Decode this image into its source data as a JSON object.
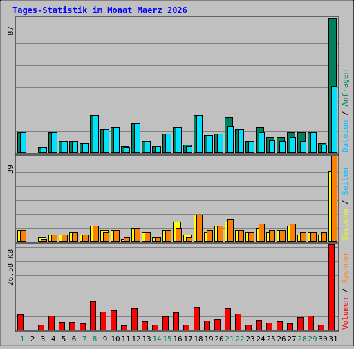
{
  "title": "Tages-Statistik im Monat Maerz 2026",
  "colors": {
    "background": "#c0c0c0",
    "title": "#0000ff",
    "hits": "#00805c",
    "files": "#00e0ff",
    "pages": "#00c0ff",
    "visits": "#ffff00",
    "sites": "#ff8000",
    "kbytes": "#ff0000",
    "weekend_label": "#00805c",
    "weekday_label": "#000000"
  },
  "chart_data": [
    {
      "type": "bar",
      "panel": "top",
      "scale_max_label": "87",
      "ylim": [
        0,
        87
      ],
      "categories": [
        "1",
        "2",
        "3",
        "4",
        "5",
        "6",
        "7",
        "8",
        "9",
        "10",
        "11",
        "12",
        "13",
        "14",
        "15",
        "16",
        "17",
        "18",
        "19",
        "20",
        "21",
        "22",
        "23",
        "24",
        "25",
        "26",
        "27",
        "28",
        "29",
        "30",
        "31"
      ],
      "weekend_days": [
        "1",
        "7",
        "8",
        "14",
        "15",
        "21",
        "22",
        "28",
        "29"
      ],
      "series": [
        {
          "name": "Anfragen",
          "values": [
            13,
            0,
            3,
            13,
            7,
            7,
            6,
            24,
            15,
            16,
            4,
            19,
            7,
            4,
            12,
            16,
            5,
            24,
            11,
            12,
            23,
            15,
            7,
            16,
            10,
            10,
            13,
            13,
            13,
            6,
            87
          ]
        },
        {
          "name": "Dateien",
          "values": [
            13,
            0,
            3,
            13,
            7,
            7,
            6,
            24,
            15,
            16,
            3,
            19,
            7,
            4,
            12,
            16,
            4,
            24,
            11,
            12,
            17,
            15,
            7,
            13,
            8,
            7,
            10,
            7,
            13,
            5,
            43
          ]
        }
      ],
      "legend_labels": [
        "Dateien",
        "Anfragen"
      ]
    },
    {
      "type": "bar",
      "panel": "middle",
      "scale_max_label": "39",
      "ylim": [
        0,
        39
      ],
      "categories": [
        "1",
        "2",
        "3",
        "4",
        "5",
        "6",
        "7",
        "8",
        "9",
        "10",
        "11",
        "12",
        "13",
        "14",
        "15",
        "16",
        "17",
        "18",
        "19",
        "20",
        "21",
        "22",
        "23",
        "24",
        "25",
        "26",
        "27",
        "28",
        "29",
        "30",
        "31"
      ],
      "series": [
        {
          "name": "Seiten",
          "values": [
            5,
            0,
            2,
            3,
            3,
            4,
            3,
            7,
            5,
            5,
            1,
            6,
            4,
            2,
            5,
            9,
            3,
            12,
            4,
            7,
            9,
            5,
            4,
            6,
            4,
            5,
            7,
            3,
            4,
            3,
            32
          ]
        },
        {
          "name": "Besuche",
          "values": [
            5,
            0,
            1,
            3,
            3,
            4,
            3,
            7,
            4,
            5,
            2,
            6,
            4,
            2,
            5,
            6,
            2,
            12,
            5,
            7,
            10,
            5,
            4,
            8,
            5,
            5,
            8,
            4,
            4,
            4,
            39
          ]
        }
      ],
      "legend_labels": [
        "Besuche",
        "Seiten"
      ]
    },
    {
      "type": "bar",
      "panel": "bottom",
      "scale_max_label": "26.58 KB",
      "ylim": [
        0,
        26.58
      ],
      "categories": [
        "1",
        "2",
        "3",
        "4",
        "5",
        "6",
        "7",
        "8",
        "9",
        "10",
        "11",
        "12",
        "13",
        "14",
        "15",
        "16",
        "17",
        "18",
        "19",
        "20",
        "21",
        "22",
        "23",
        "24",
        "25",
        "26",
        "27",
        "28",
        "29",
        "30",
        "31"
      ],
      "series": [
        {
          "name": "Volumen",
          "values": [
            4.7,
            0,
            1.5,
            4.4,
            2.4,
            2.4,
            1.9,
            8.8,
            5.7,
            6.1,
            1.3,
            6.7,
            2.7,
            1.6,
            4.1,
            5.4,
            1.6,
            7.0,
            2.8,
            3.3,
            6.7,
            5.0,
            1.6,
            3.0,
            2.2,
            2.5,
            2.0,
            3.8,
            4.4,
            1.6,
            26.58
          ]
        }
      ],
      "legend_labels": [
        "Volumen",
        "Rechner"
      ]
    }
  ]
}
